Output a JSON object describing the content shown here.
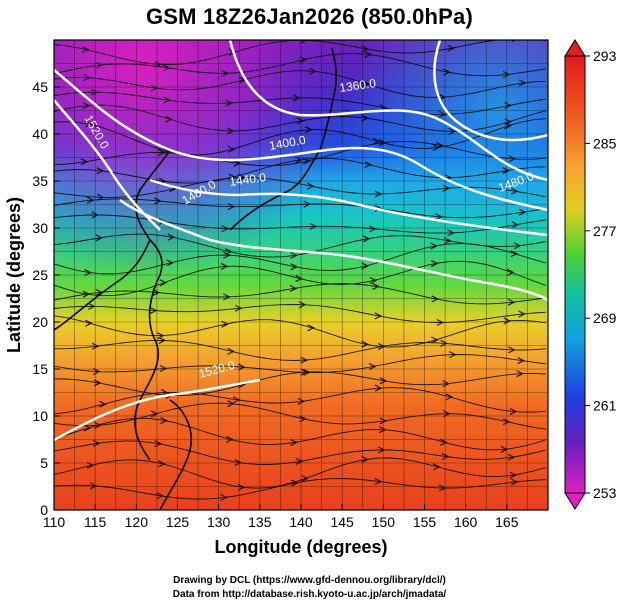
{
  "title": "GSM 18Z26Jan2026 (850.0hPa)",
  "axes": {
    "xlabel": "Longitude (degrees)",
    "ylabel": "Latitude (degrees)",
    "xticks": [
      "110",
      "115",
      "120",
      "125",
      "130",
      "135",
      "140",
      "145",
      "150",
      "155",
      "160",
      "165"
    ],
    "yticks": [
      "0",
      "5",
      "10",
      "15",
      "20",
      "25",
      "30",
      "35",
      "40",
      "45"
    ],
    "xlim": [
      110,
      170
    ],
    "ylim": [
      0,
      50
    ]
  },
  "colorbar": {
    "labels": [
      "293",
      "285",
      "277",
      "269",
      "261",
      "253"
    ],
    "range": [
      253,
      293
    ],
    "colors": [
      "#e41a1c",
      "#f06020",
      "#f8a030",
      "#e0d020",
      "#50d030",
      "#10c0a0",
      "#10a0e0",
      "#2040e0",
      "#6020c0",
      "#e020c0"
    ]
  },
  "contours": [
    {
      "label": "1360.0"
    },
    {
      "label": "1400.0"
    },
    {
      "label": "1440.0"
    },
    {
      "label": "1480.0"
    },
    {
      "label": "1520.0"
    },
    {
      "label": "1520.0"
    },
    {
      "label": "1480.0"
    }
  ],
  "footer": {
    "line1": "Drawing by DCL (https://www.gfd-dennou.org/library/dcl/)",
    "line2": "Data from http://database.rish.kyoto-u.ac.jp/arch/jmadata/"
  }
}
